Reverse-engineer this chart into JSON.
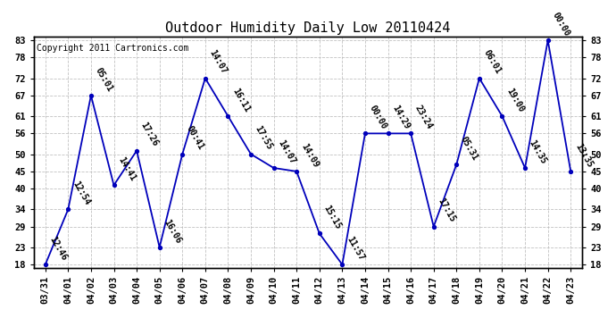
{
  "title": "Outdoor Humidity Daily Low 20110424",
  "copyright": "Copyright 2011 Cartronics.com",
  "x_labels": [
    "03/31",
    "04/01",
    "04/02",
    "04/03",
    "04/04",
    "04/05",
    "04/06",
    "04/07",
    "04/08",
    "04/09",
    "04/10",
    "04/11",
    "04/12",
    "04/13",
    "04/14",
    "04/15",
    "04/16",
    "04/17",
    "04/18",
    "04/19",
    "04/20",
    "04/21",
    "04/22",
    "04/23"
  ],
  "y_values": [
    18,
    34,
    67,
    41,
    51,
    23,
    50,
    72,
    61,
    50,
    46,
    45,
    27,
    18,
    56,
    56,
    56,
    29,
    47,
    72,
    61,
    46,
    83,
    45
  ],
  "point_labels": [
    "12:46",
    "12:54",
    "05:01",
    "14:41",
    "17:26",
    "16:06",
    "00:41",
    "14:07",
    "16:11",
    "17:55",
    "14:07",
    "14:09",
    "15:15",
    "11:57",
    "00:00",
    "14:29",
    "23:24",
    "17:15",
    "05:31",
    "06:01",
    "19:00",
    "14:35",
    "00:00",
    "13:35"
  ],
  "ylim_min": 18,
  "ylim_max": 83,
  "y_ticks": [
    18,
    23,
    29,
    34,
    40,
    45,
    50,
    56,
    61,
    67,
    72,
    78,
    83
  ],
  "line_color": "#0000bb",
  "marker_color": "#0000bb",
  "bg_color": "#ffffff",
  "grid_color": "#bbbbbb",
  "title_fontsize": 11,
  "copyright_fontsize": 7,
  "label_fontsize": 7,
  "tick_fontsize": 7.5
}
